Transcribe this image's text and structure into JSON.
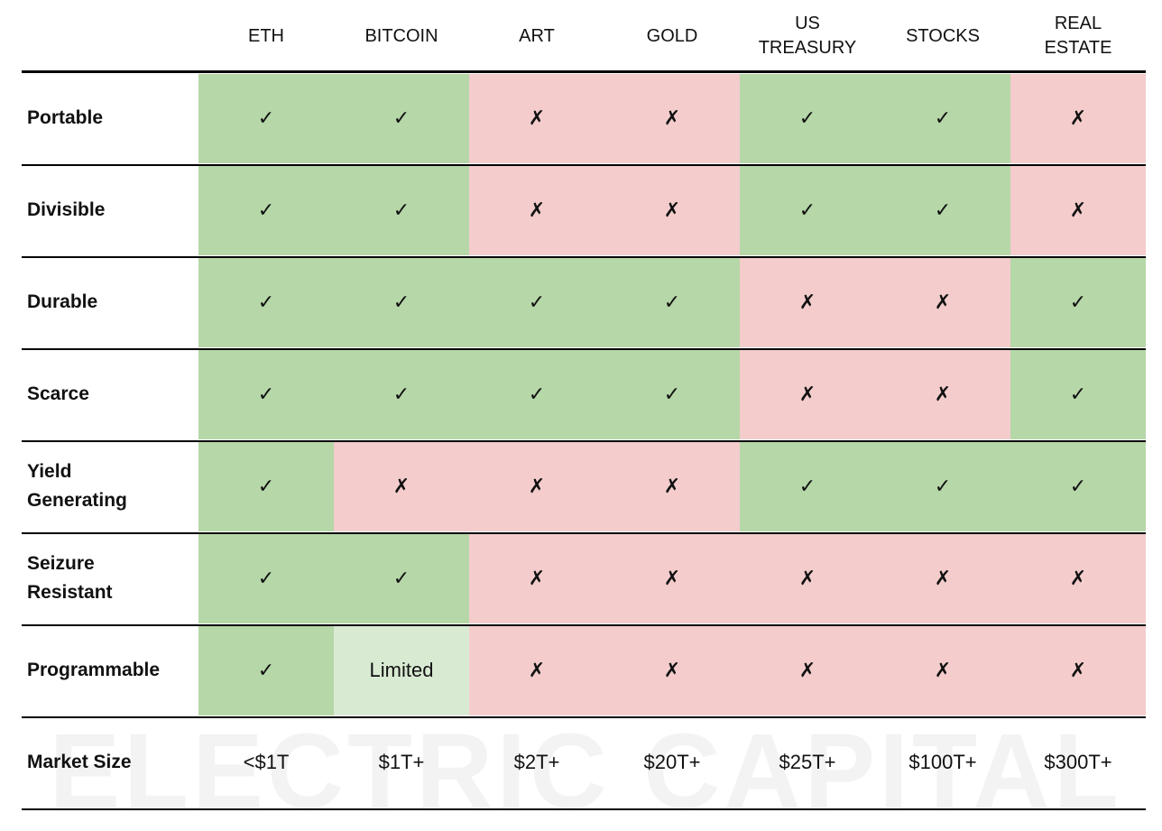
{
  "watermark": "ELECTRIC CAPITAL",
  "header": {
    "columns": [
      "ETH",
      "BITCOIN",
      "ART",
      "GOLD",
      "US\nTREASURY",
      "STOCKS",
      "REAL\nESTATE"
    ]
  },
  "rows": [
    {
      "label": "Portable",
      "cells": [
        "✓",
        "✓",
        "✗",
        "✗",
        "✓",
        "✓",
        "✗"
      ],
      "fills": [
        "#b6d7a8",
        "#b6d7a8",
        "#f4cccc",
        "#f4cccc",
        "#b6d7a8",
        "#b6d7a8",
        "#f4cccc"
      ]
    },
    {
      "label": "Divisible",
      "cells": [
        "✓",
        "✓",
        "✗",
        "✗",
        "✓",
        "✓",
        "✗"
      ],
      "fills": [
        "#b6d7a8",
        "#b6d7a8",
        "#f4cccc",
        "#f4cccc",
        "#b6d7a8",
        "#b6d7a8",
        "#f4cccc"
      ]
    },
    {
      "label": "Durable",
      "cells": [
        "✓",
        "✓",
        "✓",
        "✓",
        "✗",
        "✗",
        "✓"
      ],
      "fills": [
        "#b6d7a8",
        "#b6d7a8",
        "#b6d7a8",
        "#b6d7a8",
        "#f4cccc",
        "#f4cccc",
        "#b6d7a8"
      ]
    },
    {
      "label": "Scarce",
      "cells": [
        "✓",
        "✓",
        "✓",
        "✓",
        "✗",
        "✗",
        "✓"
      ],
      "fills": [
        "#b6d7a8",
        "#b6d7a8",
        "#b6d7a8",
        "#b6d7a8",
        "#f4cccc",
        "#f4cccc",
        "#b6d7a8"
      ]
    },
    {
      "label": "Yield\nGenerating",
      "cells": [
        "✓",
        "✗",
        "✗",
        "✗",
        "✓",
        "✓",
        "✓"
      ],
      "fills": [
        "#b6d7a8",
        "#f4cccc",
        "#f4cccc",
        "#f4cccc",
        "#b6d7a8",
        "#b6d7a8",
        "#b6d7a8"
      ]
    },
    {
      "label": "Seizure\nResistant",
      "cells": [
        "✓",
        "✓",
        "✗",
        "✗",
        "✗",
        "✗",
        "✗"
      ],
      "fills": [
        "#b6d7a8",
        "#b6d7a8",
        "#f4cccc",
        "#f4cccc",
        "#f4cccc",
        "#f4cccc",
        "#f4cccc"
      ]
    },
    {
      "label": "Programmable",
      "cells": [
        "✓",
        "Limited",
        "✗",
        "✗",
        "✗",
        "✗",
        "✗"
      ],
      "fills": [
        "#b6d7a8",
        "#d9ead3",
        "#f4cccc",
        "#f4cccc",
        "#f4cccc",
        "#f4cccc",
        "#f4cccc"
      ]
    },
    {
      "label": "Market Size",
      "cells": [
        "<$1T",
        "$1T+",
        "$2T+",
        "$20T+",
        "$25T+",
        "$100T+",
        "$300T+"
      ]
    }
  ]
}
